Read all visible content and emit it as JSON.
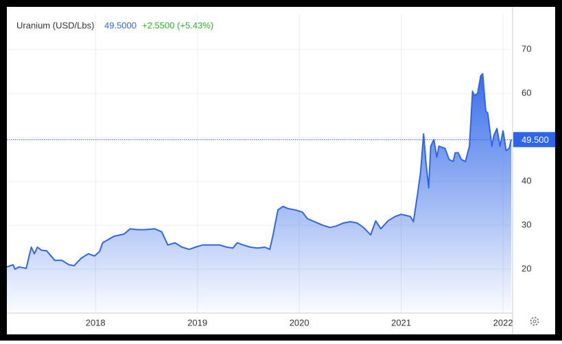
{
  "chart_data": {
    "type": "area",
    "title": "Uranium (USD/Lbs)",
    "price": "49.5000",
    "change": "+2.5500 (+5.43%)",
    "price_line": {
      "value": 49.5,
      "label": "49.500"
    },
    "color": "#2f66e8",
    "x": [
      2017.13,
      2017.19,
      2017.21,
      2017.25,
      2017.32,
      2017.37,
      2017.4,
      2017.43,
      2017.47,
      2017.52,
      2017.6,
      2017.67,
      2017.74,
      2017.79,
      2017.86,
      2017.93,
      2017.99,
      2018.04,
      2018.07,
      2018.18,
      2018.28,
      2018.34,
      2018.41,
      2018.48,
      2018.58,
      2018.65,
      2018.71,
      2018.78,
      2018.85,
      2018.92,
      2018.98,
      2019.05,
      2019.12,
      2019.22,
      2019.29,
      2019.35,
      2019.39,
      2019.45,
      2019.52,
      2019.59,
      2019.66,
      2019.71,
      2019.74,
      2019.79,
      2019.84,
      2019.89,
      2019.96,
      2020.03,
      2020.08,
      2020.13,
      2020.23,
      2020.3,
      2020.36,
      2020.43,
      2020.5,
      2020.57,
      2020.63,
      2020.7,
      2020.75,
      2020.8,
      2020.87,
      2020.94,
      2021.0,
      2021.09,
      2021.12,
      2021.16,
      2021.19,
      2021.22,
      2021.24,
      2021.27,
      2021.29,
      2021.32,
      2021.35,
      2021.37,
      2021.43,
      2021.47,
      2021.51,
      2021.53,
      2021.56,
      2021.59,
      2021.63,
      2021.67,
      2021.7,
      2021.72,
      2021.75,
      2021.78,
      2021.8,
      2021.83,
      2021.85,
      2021.89,
      2021.91,
      2021.94,
      2021.97,
      2022.0,
      2022.03,
      2022.06,
      2022.08
    ],
    "values": [
      20.5,
      21,
      20,
      20.5,
      20.2,
      25,
      23.5,
      25,
      24.3,
      24.2,
      22,
      22,
      21,
      20.8,
      22.5,
      23.5,
      23,
      24,
      26,
      27.5,
      28,
      29.2,
      29,
      29,
      29.2,
      28.5,
      25.5,
      26,
      25,
      24.5,
      25,
      25.5,
      25.5,
      25.5,
      25,
      24.8,
      26,
      25.5,
      25,
      24.8,
      25,
      24.5,
      27.5,
      33.5,
      34.3,
      33.8,
      33.5,
      33,
      31.5,
      31,
      30,
      29.5,
      29.8,
      30.5,
      30.8,
      30.5,
      29.5,
      27.8,
      31,
      29.2,
      31,
      32,
      32.5,
      32,
      30.8,
      37,
      42,
      50.8,
      45,
      38.5,
      48,
      49.5,
      45.5,
      48,
      47.5,
      45,
      44.5,
      46.5,
      46.5,
      45,
      44.5,
      48,
      60.5,
      59.5,
      60,
      64,
      64.5,
      56,
      55.5,
      48,
      50.5,
      52,
      48,
      51.5,
      47,
      47.5,
      49.5
    ],
    "xlim": [
      2017.13,
      2022.08
    ],
    "xticks": [
      2018,
      2019,
      2020,
      2021,
      2022
    ],
    "ylim": [
      10,
      78
    ],
    "yticks": [
      20,
      30,
      40,
      50,
      60,
      70
    ],
    "grid": true
  }
}
